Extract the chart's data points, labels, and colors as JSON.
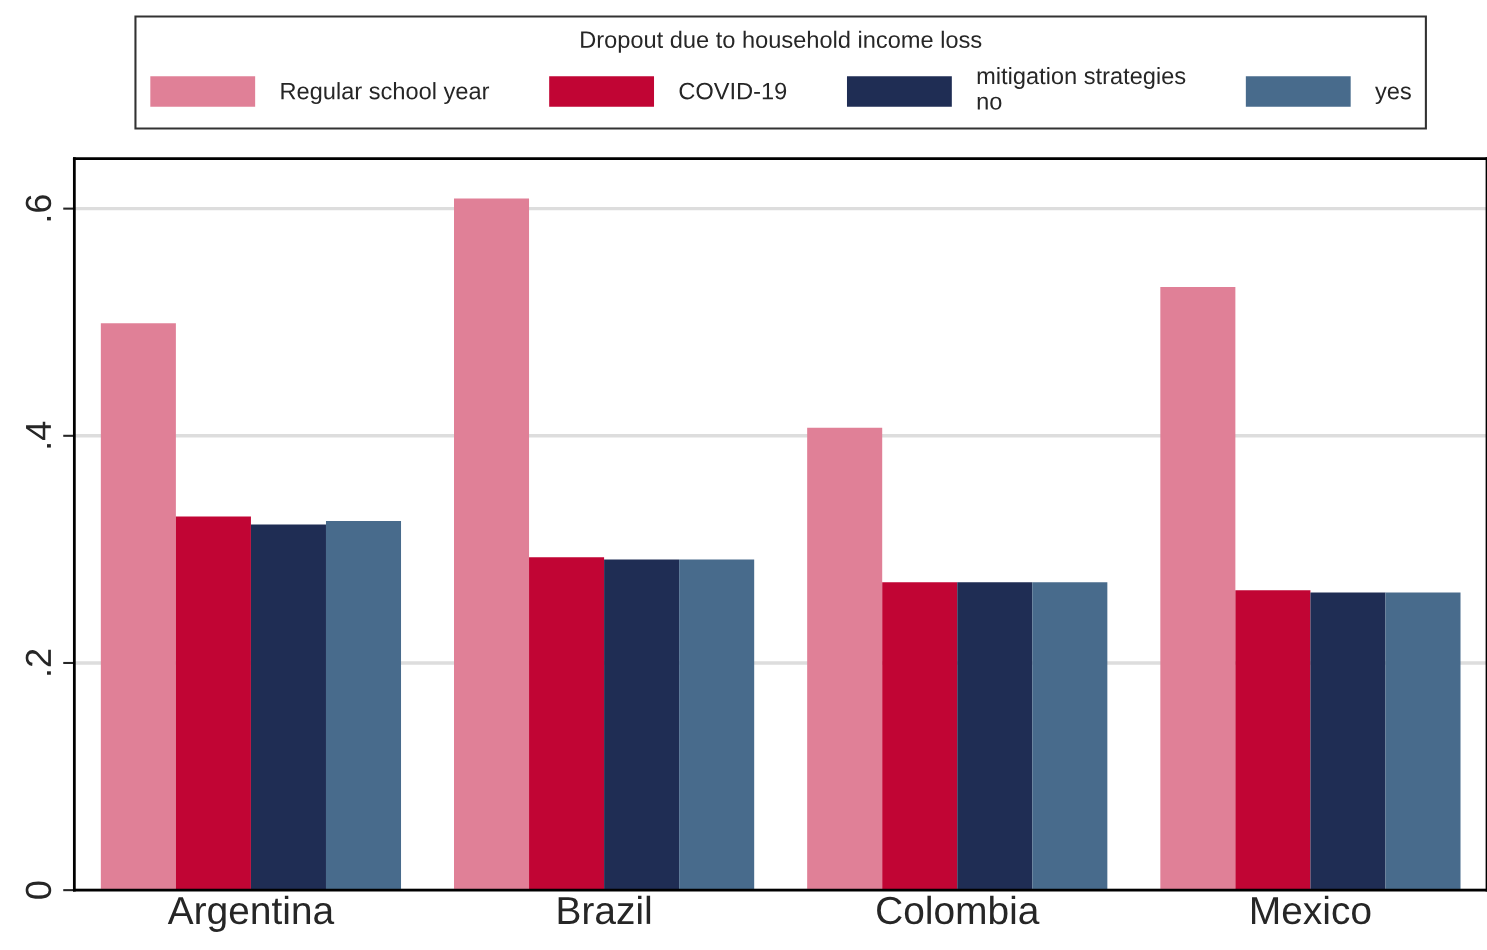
{
  "chart_data": {
    "type": "bar",
    "categories": [
      "Argentina",
      "Brazil",
      "Colombia",
      "Mexico"
    ],
    "legend_title": "Dropout due to household income loss",
    "series": [
      {
        "name": "Regular school year",
        "color": "#e08097",
        "values": [
          0.499,
          0.609,
          0.407,
          0.531
        ]
      },
      {
        "name": "COVID-19",
        "color": "#c10534",
        "values": [
          0.329,
          0.293,
          0.271,
          0.264
        ]
      },
      {
        "name": "mitigation strategies\nno",
        "color": "#1f2d54",
        "values": [
          0.322,
          0.291,
          0.271,
          0.262
        ]
      },
      {
        "name": "yes",
        "color": "#486b8c",
        "values": [
          0.325,
          0.291,
          0.271,
          0.262
        ]
      }
    ],
    "ylim": [
      0,
      0.644
    ],
    "yticks": [
      0,
      {
        "value": 0.2,
        "label": ".2"
      },
      {
        "value": 0.4,
        "label": ".4"
      },
      {
        "value": 0.6,
        "label": ".6"
      }
    ],
    "grid": "y",
    "legend": "top"
  }
}
